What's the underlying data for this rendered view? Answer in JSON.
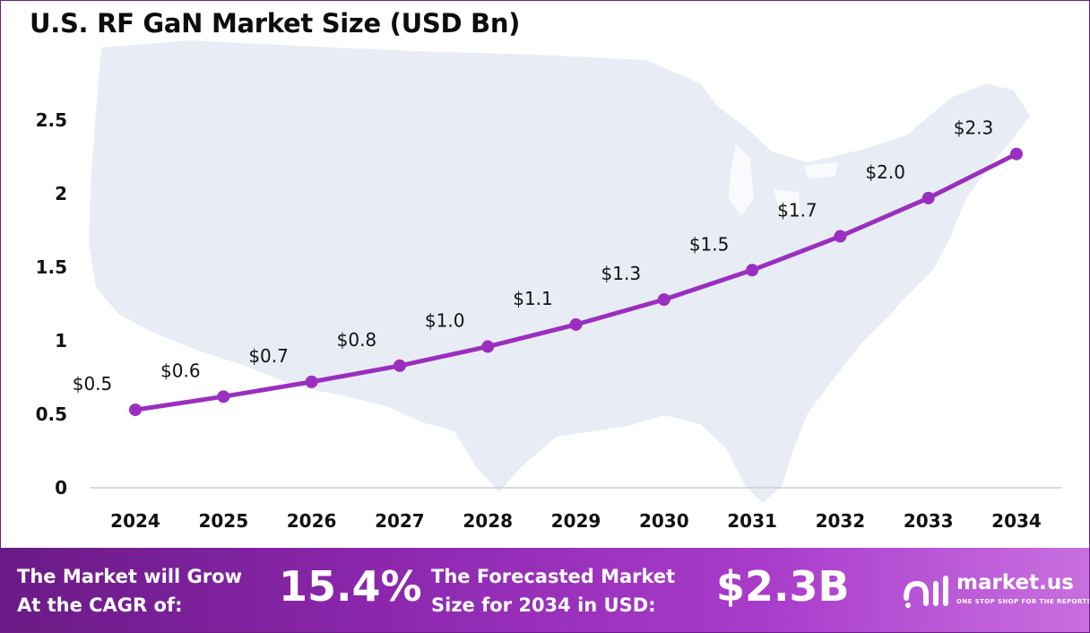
{
  "title": "U.S. RF GaN Market Size (USD Bn)",
  "colors": {
    "line": "#9a2fbf",
    "marker": "#9a2fbf",
    "map": "#e8edf5",
    "footer_start": "#6a1a86",
    "footer_end": "#c86fe0"
  },
  "chart_data": {
    "type": "line",
    "title": "U.S. RF GaN Market Size (USD Bn)",
    "categories": [
      "2024",
      "2025",
      "2026",
      "2027",
      "2028",
      "2029",
      "2030",
      "2031",
      "2032",
      "2033",
      "2034"
    ],
    "values": [
      0.53,
      0.62,
      0.72,
      0.83,
      0.96,
      1.11,
      1.28,
      1.48,
      1.71,
      1.97,
      2.27
    ],
    "data_labels": [
      "$0.5",
      "$0.6",
      "$0.7",
      "$0.8",
      "$1.0",
      "$1.1",
      "$1.3",
      "$1.5",
      "$1.7",
      "$2.0",
      "$2.3"
    ],
    "y_ticks": [
      0,
      0.5,
      1,
      1.5,
      2,
      2.5
    ],
    "y_tick_labels": [
      "0",
      "0.5",
      "1",
      "1.5",
      "2",
      "2.5"
    ],
    "ylim": [
      0,
      2.6
    ],
    "grid": false,
    "legend": "none"
  },
  "footer": {
    "cagr_line1": "The Market will Grow",
    "cagr_line2": "At the CAGR of:",
    "cagr_value": "15.4%",
    "forecast_line1": "The Forecasted Market",
    "forecast_line2": "Size for 2034 in USD:",
    "forecast_value": "$2.3B"
  },
  "logo": {
    "name": "market.us",
    "tagline": "ONE STOP SHOP FOR THE REPORTS"
  }
}
